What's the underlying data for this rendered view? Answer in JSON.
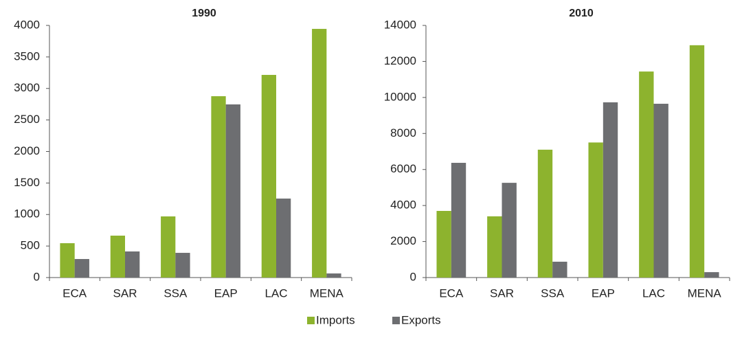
{
  "chart_data": [
    {
      "type": "bar",
      "title": "1990",
      "categories": [
        "ECA",
        "SAR",
        "SSA",
        "EAP",
        "LAC",
        "MENA"
      ],
      "series": [
        {
          "name": "Imports",
          "color": "#8db32e",
          "values": [
            545,
            665,
            970,
            2877,
            3215,
            3945
          ]
        },
        {
          "name": "Exports",
          "color": "#6d6e71",
          "values": [
            294,
            414,
            392,
            2747,
            1253,
            65
          ]
        }
      ],
      "ylim": [
        0,
        4000
      ],
      "yticks": [
        0,
        500,
        1000,
        1500,
        2000,
        2500,
        3000,
        3500,
        4000
      ],
      "grid": false,
      "legend": "bottom"
    },
    {
      "type": "bar",
      "title": "2010",
      "categories": [
        "ECA",
        "SAR",
        "SSA",
        "EAP",
        "LAC",
        "MENA"
      ],
      "series": [
        {
          "name": "Imports",
          "color": "#8db32e",
          "values": [
            3700,
            3400,
            7100,
            7500,
            11440,
            12900
          ]
        },
        {
          "name": "Exports",
          "color": "#6d6e71",
          "values": [
            6370,
            5260,
            880,
            9730,
            9650,
            300
          ]
        }
      ],
      "ylim": [
        0,
        14000
      ],
      "yticks": [
        0,
        2000,
        4000,
        6000,
        8000,
        10000,
        12000,
        14000
      ],
      "grid": false,
      "legend": "bottom"
    }
  ]
}
